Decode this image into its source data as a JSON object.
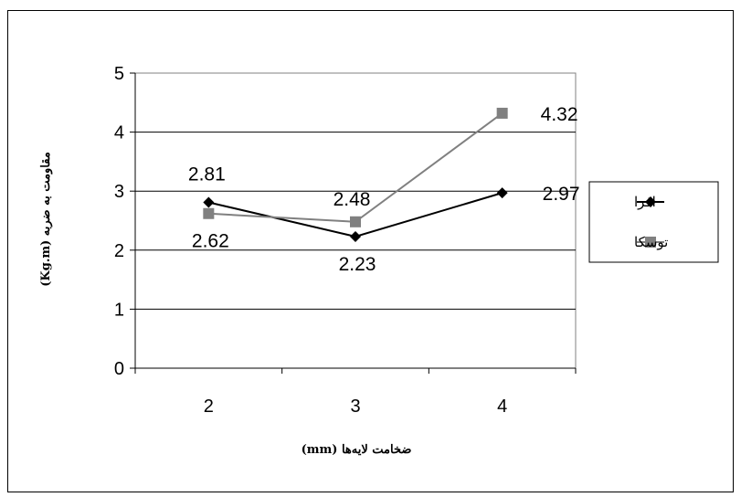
{
  "chart_data": {
    "type": "line",
    "title": "",
    "xlabel": "ضخامت لایه‌ها (mm)",
    "ylabel": "مقاومت به ضربه (Kg.m)",
    "categories": [
      "2",
      "3",
      "4"
    ],
    "ylim": [
      0,
      5
    ],
    "yticks": [
      "0",
      "1",
      "2",
      "3",
      "4",
      "5"
    ],
    "grid": true,
    "legend_position": "right",
    "series": [
      {
        "name": "افرا",
        "values": [
          2.81,
          2.23,
          2.97
        ],
        "labels": [
          "2.81",
          "2.23",
          "2.97"
        ],
        "color": "#000000",
        "marker": "diamond"
      },
      {
        "name": "توسکا",
        "values": [
          2.62,
          2.48,
          4.32
        ],
        "labels": [
          "2.62",
          "2.48",
          "4.32"
        ],
        "color": "#808080",
        "marker": "square"
      }
    ]
  }
}
